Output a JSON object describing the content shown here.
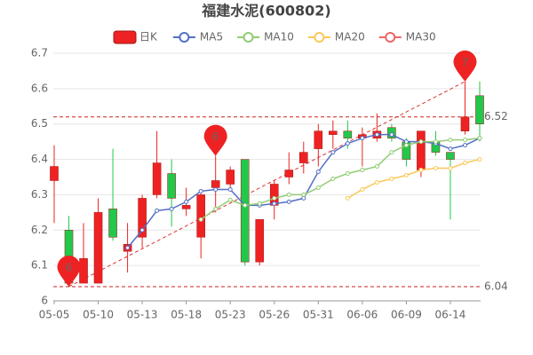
{
  "chart_data": {
    "type": "candlestick",
    "title": "福建水泥(600802)",
    "categories": [
      "05-05",
      null,
      null,
      "05-10",
      null,
      null,
      "05-13",
      null,
      null,
      "05-18",
      null,
      null,
      "05-23",
      null,
      null,
      "05-26",
      null,
      null,
      "05-31",
      null,
      null,
      "06-06",
      null,
      null,
      "06-09",
      null,
      null,
      "06-14",
      null,
      null
    ],
    "ylim": [
      6,
      6.7
    ],
    "yticks": [
      6,
      6.1,
      6.2,
      6.3,
      6.4,
      6.5,
      6.6,
      6.7
    ],
    "grid": true,
    "candles": {
      "name": "日K",
      "up_color": "#ee2222",
      "down_color": "#22c84a",
      "open": [
        6.34,
        6.2,
        6.05,
        6.05,
        6.26,
        6.14,
        6.18,
        6.3,
        6.36,
        6.26,
        6.18,
        6.32,
        6.33,
        6.4,
        6.11,
        6.27,
        6.35,
        6.39,
        6.43,
        6.47,
        6.48,
        6.46,
        6.46,
        6.49,
        6.45,
        6.37,
        6.45,
        6.42,
        6.48,
        6.58
      ],
      "close": [
        6.38,
        6.05,
        6.12,
        6.25,
        6.18,
        6.16,
        6.29,
        6.39,
        6.29,
        6.27,
        6.3,
        6.34,
        6.37,
        6.11,
        6.23,
        6.33,
        6.37,
        6.42,
        6.48,
        6.48,
        6.46,
        6.47,
        6.48,
        6.46,
        6.4,
        6.48,
        6.42,
        6.4,
        6.52,
        6.5
      ],
      "high": [
        6.44,
        6.24,
        6.22,
        6.29,
        6.43,
        6.22,
        6.3,
        6.48,
        6.4,
        6.32,
        6.31,
        6.41,
        6.38,
        6.4,
        6.23,
        6.34,
        6.42,
        6.45,
        6.5,
        6.51,
        6.51,
        6.49,
        6.53,
        6.5,
        6.46,
        6.48,
        6.48,
        6.42,
        6.62,
        6.62
      ],
      "low": [
        6.22,
        6.04,
        6.05,
        6.05,
        6.17,
        6.08,
        6.15,
        6.29,
        6.21,
        6.24,
        6.12,
        6.25,
        6.31,
        6.1,
        6.1,
        6.23,
        6.33,
        6.36,
        6.38,
        6.43,
        6.43,
        6.38,
        6.45,
        6.45,
        6.38,
        6.35,
        6.41,
        6.23,
        6.47,
        6.45
      ]
    },
    "series": [
      {
        "name": "MA5",
        "color": "#5470c6",
        "values": [
          null,
          null,
          null,
          null,
          null,
          6.15,
          6.2,
          6.255,
          6.26,
          6.28,
          6.31,
          6.315,
          6.315,
          6.27,
          6.27,
          6.275,
          6.28,
          6.29,
          6.365,
          6.42,
          6.445,
          6.46,
          6.47,
          6.47,
          6.45,
          6.45,
          6.445,
          6.43,
          6.44,
          6.46
        ]
      },
      {
        "name": "MA10",
        "color": "#91cc75",
        "values": [
          null,
          null,
          null,
          null,
          null,
          null,
          null,
          null,
          null,
          null,
          6.23,
          6.26,
          6.285,
          6.27,
          6.275,
          6.29,
          6.3,
          6.3,
          6.32,
          6.345,
          6.36,
          6.37,
          6.38,
          6.42,
          6.44,
          6.45,
          6.45,
          6.455,
          6.455,
          6.46
        ]
      },
      {
        "name": "MA20",
        "color": "#fac858",
        "values": [
          null,
          null,
          null,
          null,
          null,
          null,
          null,
          null,
          null,
          null,
          null,
          null,
          null,
          null,
          null,
          null,
          null,
          null,
          null,
          null,
          6.29,
          6.315,
          6.335,
          6.345,
          6.355,
          6.37,
          6.375,
          6.375,
          6.39,
          6.4
        ]
      },
      {
        "name": "MA30",
        "color": "#ee6666",
        "values": [
          null,
          null,
          null,
          null,
          null,
          null,
          null,
          null,
          null,
          null,
          null,
          null,
          null,
          null,
          null,
          null,
          null,
          null,
          null,
          null,
          null,
          null,
          null,
          null,
          null,
          null,
          null,
          null,
          null,
          null
        ]
      }
    ],
    "ref_lines": [
      6.52,
      6.04
    ],
    "pins": [
      {
        "index": 1,
        "at": "low",
        "text": "6"
      },
      {
        "index": 11,
        "at": "high",
        "text": "6"
      },
      {
        "index": 28,
        "at": "high",
        "text": "7"
      }
    ]
  }
}
